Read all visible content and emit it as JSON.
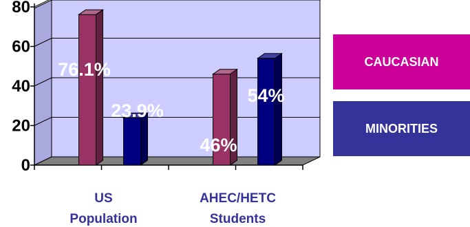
{
  "chart_data": {
    "type": "bar",
    "title": "",
    "xlabel": "",
    "ylabel": "",
    "ylim": [
      0,
      80
    ],
    "yticks": [
      0,
      20,
      40,
      60,
      80
    ],
    "categories": [
      [
        "US",
        "Population"
      ],
      [
        "AHEC/HETC",
        "Students"
      ]
    ],
    "series": [
      {
        "name": "CAUCASIAN",
        "color": "#993366",
        "values": [
          76.1,
          46
        ],
        "labels": [
          "76.1%",
          "46%"
        ]
      },
      {
        "name": "MINORITIES",
        "color": "#000080",
        "values": [
          23.9,
          54
        ],
        "labels": [
          "23.9%",
          "54%"
        ]
      }
    ],
    "legend_position": "right",
    "legend_colors": [
      "#CC0099",
      "#333399"
    ],
    "grid": true,
    "style": "3d"
  }
}
